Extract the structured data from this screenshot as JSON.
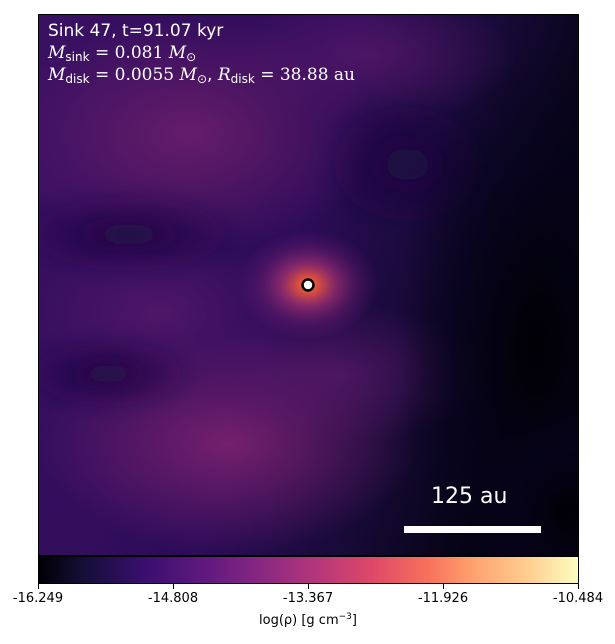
{
  "sink_info": {
    "title": "Sink 47, t=91.07 kyr",
    "mass_symbol": "M",
    "mass_sub": "sink",
    "mass_value": " = 0.081 ",
    "mass_unit_symbol": "M",
    "mass_unit_sub": "⊙",
    "disk_mass_symbol": "M",
    "disk_mass_sub": "disk",
    "disk_mass_value": " = 0.0055 ",
    "disk_mass_unit_symbol": "M",
    "disk_mass_unit_sub": "⊙",
    "disk_mass_sep": ", ",
    "disk_radius_symbol": "R",
    "disk_radius_sub": "disk",
    "disk_radius_value": " = 38.88 au"
  },
  "scale_bar": {
    "label": "125 au"
  },
  "colorbar": {
    "colormap": "inferno",
    "min": -16.249,
    "max": -10.484,
    "ticks": [
      "-16.249",
      "-14.808",
      "-13.367",
      "-11.926",
      "-10.484"
    ],
    "label_text": "log(ρ) [g cm",
    "label_exp": "−3",
    "label_close": "]"
  },
  "colors": {
    "background_dark": "#1a0b3c",
    "gas_purple": "#3b0f70",
    "gas_magenta": "#6a1a6e",
    "core_orange": "#f7705c",
    "sink_marker_fill": "#ffffff",
    "sink_marker_edge": "#000000"
  }
}
